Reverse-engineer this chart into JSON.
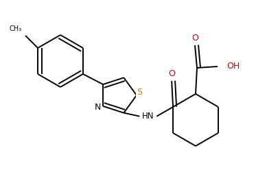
{
  "bg_color": "#ffffff",
  "bond_color": "#000000",
  "S_color": "#b8860b",
  "N_color": "#000000",
  "O_color": "#cc0000",
  "line_width": 1.4,
  "dbo": 0.008,
  "figsize": [
    3.89,
    2.67
  ],
  "dpi": 100,
  "xlim": [
    0,
    3.89
  ],
  "ylim": [
    0,
    2.67
  ]
}
